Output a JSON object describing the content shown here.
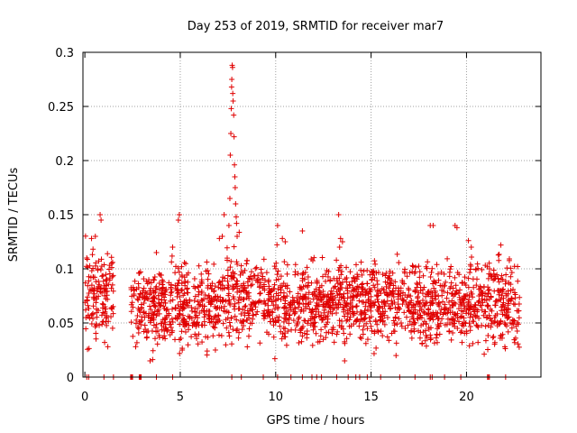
{
  "chart_data": {
    "type": "scatter",
    "title": "Day 253 of 2019, SRMTID for receiver mar7",
    "xlabel": "GPS time / hours",
    "ylabel": "SRMTID / TECUs",
    "xlim": [
      -0.1,
      23.9
    ],
    "ylim": [
      0,
      0.3
    ],
    "xticks": [
      0,
      5,
      10,
      15,
      20
    ],
    "xtick_labels": [
      "0",
      "5",
      "10",
      "15",
      "20"
    ],
    "yticks": [
      0,
      0.05,
      0.1,
      0.15,
      0.2,
      0.25,
      0.3
    ],
    "ytick_labels": [
      "0",
      "0.05",
      "0.1",
      "0.15",
      "0.2",
      "0.25",
      "0.3"
    ],
    "grid": true,
    "marker": "+",
    "series_color": "#e00000",
    "series": [
      {
        "name": "SRMTID",
        "segments": [
          {
            "start": 0.0,
            "end": 1.5,
            "mean": 0.075,
            "spread": 0.022
          },
          {
            "start": 2.4,
            "end": 7.4,
            "mean": 0.065,
            "spread": 0.02
          },
          {
            "start": 7.4,
            "end": 8.1,
            "mean": 0.075,
            "spread": 0.025
          },
          {
            "start": 8.1,
            "end": 22.8,
            "mean": 0.068,
            "spread": 0.02
          }
        ],
        "points": [
          [
            0.1,
            0.11
          ],
          [
            0.35,
            0.128
          ],
          [
            0.55,
            0.13
          ],
          [
            0.8,
            0.15
          ],
          [
            0.85,
            0.145
          ],
          [
            1.4,
            0.105
          ],
          [
            3.75,
            0.115
          ],
          [
            4.6,
            0.12
          ],
          [
            4.9,
            0.145
          ],
          [
            4.95,
            0.15
          ],
          [
            7.05,
            0.128
          ],
          [
            7.2,
            0.13
          ],
          [
            7.3,
            0.15
          ],
          [
            7.55,
            0.14
          ],
          [
            7.6,
            0.165
          ],
          [
            7.62,
            0.205
          ],
          [
            7.65,
            0.225
          ],
          [
            7.67,
            0.248
          ],
          [
            7.69,
            0.268
          ],
          [
            7.7,
            0.275
          ],
          [
            7.72,
            0.288
          ],
          [
            7.74,
            0.286
          ],
          [
            7.75,
            0.262
          ],
          [
            7.77,
            0.255
          ],
          [
            7.8,
            0.242
          ],
          [
            7.82,
            0.222
          ],
          [
            7.84,
            0.196
          ],
          [
            7.86,
            0.185
          ],
          [
            7.88,
            0.175
          ],
          [
            7.9,
            0.16
          ],
          [
            7.93,
            0.148
          ],
          [
            7.95,
            0.142
          ],
          [
            7.98,
            0.13
          ],
          [
            10.1,
            0.14
          ],
          [
            10.35,
            0.128
          ],
          [
            10.5,
            0.125
          ],
          [
            11.4,
            0.135
          ],
          [
            13.3,
            0.15
          ],
          [
            13.4,
            0.128
          ],
          [
            13.5,
            0.125
          ],
          [
            13.35,
            0.12
          ],
          [
            18.1,
            0.14
          ],
          [
            18.25,
            0.14
          ],
          [
            19.4,
            0.14
          ],
          [
            19.5,
            0.138
          ],
          [
            20.1,
            0.126
          ],
          [
            20.25,
            0.12
          ],
          [
            21.8,
            0.122
          ]
        ]
      }
    ],
    "zero_points": [
      0.1,
      0.2,
      1.0,
      1.5,
      2.4,
      2.45,
      2.5,
      2.85,
      2.9,
      2.95,
      3.75,
      4.6,
      7.7,
      8.2,
      9.35,
      10.1,
      10.8,
      11.4,
      11.9,
      12.15,
      12.4,
      13.2,
      13.8,
      14.2,
      14.4,
      14.8,
      15.5,
      16.5,
      17.3,
      18.1,
      18.2,
      18.85,
      19.7,
      21.1,
      21.15,
      21.2,
      22.05
    ]
  }
}
